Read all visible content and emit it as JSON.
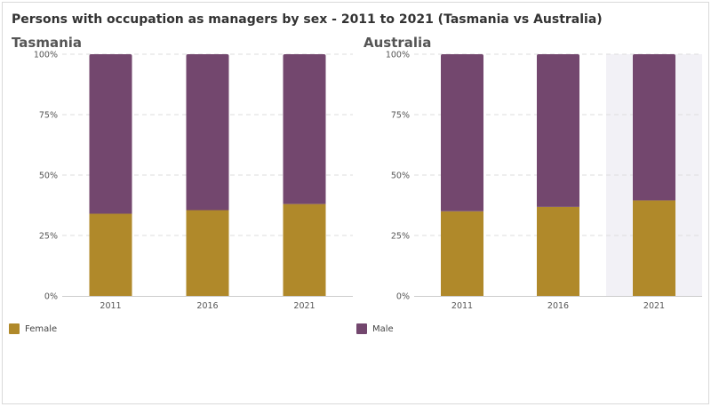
{
  "title": "Persons with occupation as managers by sex - 2011 to 2021 (Tasmania vs Australia)",
  "colors": {
    "female": "#b0892a",
    "male": "#73476e",
    "grid": "#dddddd",
    "highlight": "#f2f1f6"
  },
  "chart_data": [
    {
      "type": "bar",
      "title": "Tasmania",
      "stacked": true,
      "categories": [
        "2011",
        "2016",
        "2021"
      ],
      "ylim": [
        0,
        100
      ],
      "yticks": [
        "0%",
        "25%",
        "50%",
        "75%",
        "100%"
      ],
      "series": [
        {
          "name": "Female",
          "values": [
            34,
            35.5,
            38
          ]
        },
        {
          "name": "Male",
          "values": [
            66,
            64.5,
            62
          ]
        }
      ],
      "legend": "bottom-left",
      "legend_label": "Female"
    },
    {
      "type": "bar",
      "title": "Australia",
      "stacked": true,
      "categories": [
        "2011",
        "2016",
        "2021"
      ],
      "ylim": [
        0,
        100
      ],
      "yticks": [
        "0%",
        "25%",
        "50%",
        "75%",
        "100%"
      ],
      "series": [
        {
          "name": "Female",
          "values": [
            35,
            36.8,
            39.5
          ]
        },
        {
          "name": "Male",
          "values": [
            65,
            63.2,
            60.5
          ]
        }
      ],
      "highlighted_category": "2021",
      "legend": "bottom-left",
      "legend_label": "Male"
    }
  ]
}
